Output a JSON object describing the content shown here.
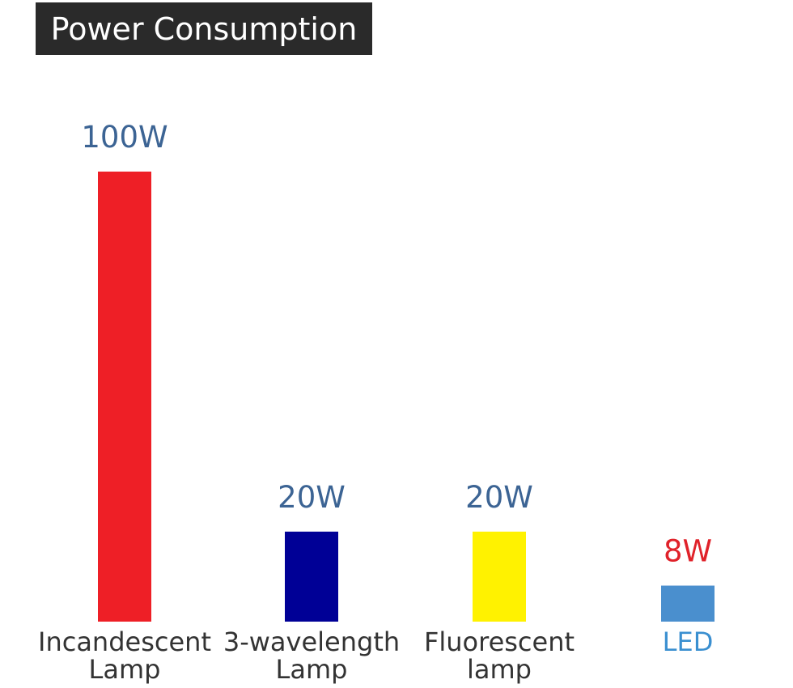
{
  "title": "Power Consumption",
  "chart_data": {
    "type": "bar",
    "title": "Power Consumption",
    "categories": [
      [
        "Incandescent",
        "Lamp"
      ],
      [
        "3-wavelength",
        "Lamp"
      ],
      [
        "Fluorescent",
        "lamp"
      ],
      [
        "LED"
      ]
    ],
    "values": [
      100,
      20,
      20,
      8
    ],
    "value_labels": [
      "100W",
      "20W",
      "20W",
      "8W"
    ],
    "unit": "W",
    "bar_colors": [
      "#ee1f26",
      "#000096",
      "#fff200",
      "#4a8fce"
    ],
    "value_label_colors": [
      "#3c6494",
      "#3c6494",
      "#3c6494",
      "#e0222a"
    ],
    "category_label_colors": [
      "#333333",
      "#333333",
      "#333333",
      "#3a8fd0"
    ],
    "grid": false,
    "legend": "none"
  }
}
